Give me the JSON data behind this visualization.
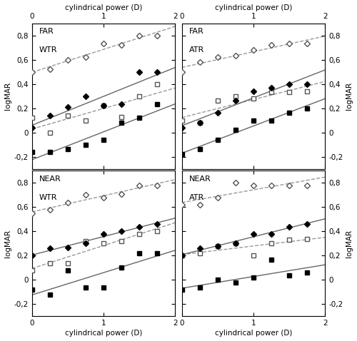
{
  "panels": [
    {
      "title_line1": "FAR",
      "title_line2": "WTR",
      "col": 0,
      "row": 0,
      "top_axis": true,
      "right_axis": false,
      "series": [
        {
          "x": [
            0.0,
            0.25,
            0.5,
            0.75,
            1.0,
            1.25,
            1.5,
            1.75
          ],
          "y": [
            0.5,
            0.52,
            0.6,
            0.62,
            0.73,
            0.72,
            0.8,
            0.8
          ],
          "marker": "D",
          "filled": false,
          "linestyle": "dashed"
        },
        {
          "x": [
            0.0,
            0.25,
            0.5,
            0.75,
            1.0,
            1.25,
            1.5,
            1.75
          ],
          "y": [
            0.12,
            0.0,
            0.14,
            0.1,
            0.22,
            0.13,
            0.3,
            0.4
          ],
          "marker": "s",
          "filled": false,
          "linestyle": "dashed"
        },
        {
          "x": [
            0.0,
            0.25,
            0.5,
            0.75,
            1.0,
            1.25,
            1.5,
            1.75
          ],
          "y": [
            0.04,
            0.14,
            0.21,
            0.3,
            0.22,
            0.23,
            0.5,
            0.5
          ],
          "marker": "D",
          "filled": true,
          "linestyle": "solid"
        },
        {
          "x": [
            0.0,
            0.25,
            0.5,
            0.75,
            1.0,
            1.25,
            1.5,
            1.75
          ],
          "y": [
            -0.16,
            -0.16,
            -0.14,
            -0.1,
            -0.06,
            0.08,
            0.12,
            0.23
          ],
          "marker": "s",
          "filled": true,
          "linestyle": "solid"
        }
      ]
    },
    {
      "title_line1": "FAR",
      "title_line2": "ATR",
      "col": 1,
      "row": 0,
      "top_axis": true,
      "right_axis": true,
      "series": [
        {
          "x": [
            0.0,
            0.25,
            0.5,
            0.75,
            1.0,
            1.25,
            1.5,
            1.75
          ],
          "y": [
            0.5,
            0.58,
            0.62,
            0.63,
            0.68,
            0.72,
            0.73,
            0.73
          ],
          "marker": "D",
          "filled": false,
          "linestyle": "dashed"
        },
        {
          "x": [
            0.0,
            0.25,
            0.5,
            0.75,
            1.0,
            1.25,
            1.5,
            1.75
          ],
          "y": [
            0.1,
            0.08,
            0.26,
            0.3,
            0.28,
            0.33,
            0.33,
            0.34
          ],
          "marker": "s",
          "filled": false,
          "linestyle": "dashed"
        },
        {
          "x": [
            0.0,
            0.25,
            0.5,
            0.75,
            1.0,
            1.25,
            1.5,
            1.75
          ],
          "y": [
            0.04,
            0.08,
            0.16,
            0.26,
            0.34,
            0.37,
            0.4,
            0.4
          ],
          "marker": "D",
          "filled": true,
          "linestyle": "solid"
        },
        {
          "x": [
            0.0,
            0.25,
            0.5,
            0.75,
            1.0,
            1.25,
            1.5,
            1.75
          ],
          "y": [
            -0.18,
            -0.14,
            -0.06,
            0.02,
            0.1,
            0.1,
            0.16,
            0.2
          ],
          "marker": "s",
          "filled": true,
          "linestyle": "solid"
        }
      ]
    },
    {
      "title_line1": "NEAR",
      "title_line2": "WTR",
      "col": 0,
      "row": 1,
      "top_axis": false,
      "right_axis": false,
      "series": [
        {
          "x": [
            0.0,
            0.25,
            0.5,
            0.75,
            1.0,
            1.25,
            1.5,
            1.75
          ],
          "y": [
            0.55,
            0.58,
            0.64,
            0.7,
            0.68,
            0.71,
            0.78,
            0.78
          ],
          "marker": "D",
          "filled": false,
          "linestyle": "dashed"
        },
        {
          "x": [
            0.0,
            0.25,
            0.5,
            0.75,
            1.0,
            1.25,
            1.5,
            1.75
          ],
          "y": [
            0.08,
            0.14,
            0.14,
            0.32,
            0.3,
            0.32,
            0.38,
            0.4
          ],
          "marker": "s",
          "filled": false,
          "linestyle": "dashed"
        },
        {
          "x": [
            0.0,
            0.25,
            0.5,
            0.75,
            1.0,
            1.25,
            1.5,
            1.75
          ],
          "y": [
            0.2,
            0.26,
            0.27,
            0.3,
            0.38,
            0.4,
            0.44,
            0.46
          ],
          "marker": "D",
          "filled": true,
          "linestyle": "solid"
        },
        {
          "x": [
            0.0,
            0.25,
            0.5,
            0.75,
            1.0,
            1.25,
            1.5,
            1.75
          ],
          "y": [
            -0.08,
            -0.12,
            0.08,
            -0.06,
            -0.06,
            0.1,
            0.22,
            0.22
          ],
          "marker": "s",
          "filled": true,
          "linestyle": "solid"
        }
      ]
    },
    {
      "title_line1": "NEAR",
      "title_line2": "ATR",
      "col": 1,
      "row": 1,
      "top_axis": false,
      "right_axis": true,
      "series": [
        {
          "x": [
            0.0,
            0.25,
            0.5,
            0.75,
            1.0,
            1.25,
            1.5,
            1.75
          ],
          "y": [
            0.62,
            0.62,
            0.68,
            0.8,
            0.78,
            0.78,
            0.78,
            0.78
          ],
          "marker": "D",
          "filled": false,
          "linestyle": "dashed"
        },
        {
          "x": [
            0.0,
            0.25,
            0.5,
            0.75,
            1.0,
            1.25,
            1.5,
            1.75
          ],
          "y": [
            0.2,
            0.22,
            0.28,
            0.3,
            0.2,
            0.3,
            0.33,
            0.34
          ],
          "marker": "s",
          "filled": false,
          "linestyle": "dashed"
        },
        {
          "x": [
            0.0,
            0.25,
            0.5,
            0.75,
            1.0,
            1.25,
            1.5,
            1.75
          ],
          "y": [
            0.2,
            0.26,
            0.28,
            0.3,
            0.38,
            0.38,
            0.44,
            0.46
          ],
          "marker": "D",
          "filled": true,
          "linestyle": "solid"
        },
        {
          "x": [
            0.0,
            0.25,
            0.5,
            0.75,
            1.0,
            1.25,
            1.5,
            1.75
          ],
          "y": [
            -0.08,
            -0.06,
            0.0,
            -0.02,
            0.02,
            0.17,
            0.04,
            0.06
          ],
          "marker": "s",
          "filled": true,
          "linestyle": "solid"
        }
      ]
    }
  ],
  "xlim": [
    0,
    2
  ],
  "ylim": [
    -0.3,
    0.9
  ],
  "yticks": [
    -0.2,
    0.0,
    0.2,
    0.4,
    0.6,
    0.8
  ],
  "xticks_main": [
    0,
    1,
    2
  ],
  "xticks_top": [
    0,
    1,
    2
  ],
  "xlabel": "cylindrical power (D)",
  "ylabel": "logMAR",
  "marker_size": 4.5,
  "line_width": 1.0,
  "marker_edge_width": 1.0,
  "solid_line_color": "#666666",
  "dashed_line_color": "#999999",
  "open_marker_color": "#555555",
  "filled_marker_color": "#000000",
  "font_size": 7.5,
  "title_font_size": 8.0,
  "spine_linewidth": 0.8
}
